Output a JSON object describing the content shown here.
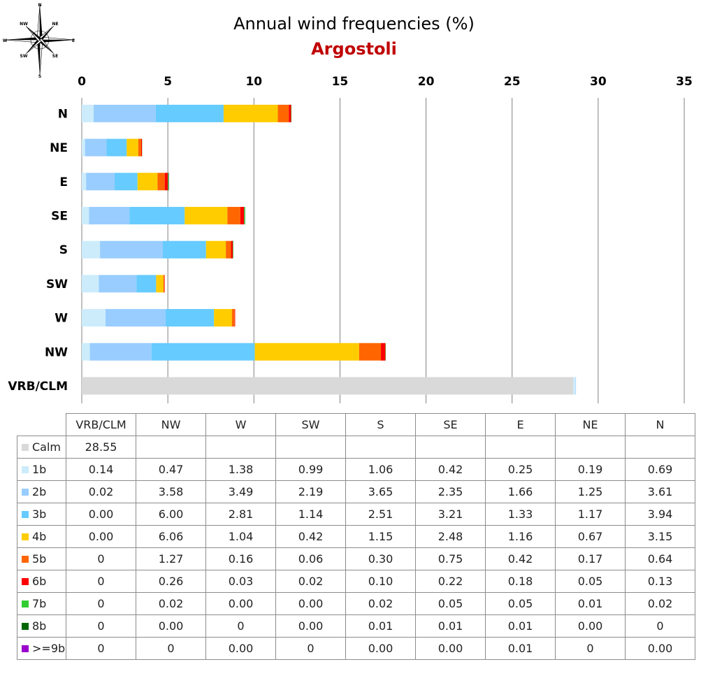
{
  "title": "Annual wind frequencies (%)",
  "subtitle": "Argostoli",
  "compass": {
    "icon": "compass-rose-icon",
    "labels": [
      "N",
      "NE",
      "E",
      "SE",
      "S",
      "SW",
      "W",
      "NW"
    ]
  },
  "colors": {
    "title": "#000000",
    "subtitle": "#c00000",
    "gridline": "#808080"
  },
  "chart_data": {
    "type": "bar",
    "orientation": "horizontal",
    "stacked": true,
    "xlim": [
      0,
      35
    ],
    "xticks": [
      "0",
      "5",
      "10",
      "15",
      "20",
      "25",
      "30",
      "35"
    ],
    "grid": true,
    "categories": [
      "N",
      "NE",
      "E",
      "SE",
      "S",
      "SW",
      "W",
      "NW",
      "VRB/CLM"
    ],
    "series": [
      {
        "name": "Calm",
        "color": "#d9d9d9",
        "values": [
          0,
          0,
          0,
          0,
          0,
          0,
          0,
          0,
          28.55
        ]
      },
      {
        "name": "1b",
        "color": "#ccecfb",
        "values": [
          0.69,
          0.19,
          0.25,
          0.42,
          1.06,
          0.99,
          1.38,
          0.47,
          0.14
        ]
      },
      {
        "name": "2b",
        "color": "#99ccff",
        "values": [
          3.61,
          1.25,
          1.66,
          2.35,
          3.65,
          2.19,
          3.49,
          3.58,
          0.02
        ]
      },
      {
        "name": "3b",
        "color": "#66ccff",
        "values": [
          3.94,
          1.17,
          1.33,
          3.21,
          2.51,
          1.14,
          2.81,
          6.0,
          0.0
        ]
      },
      {
        "name": "4b",
        "color": "#ffcc00",
        "values": [
          3.15,
          0.67,
          1.16,
          2.48,
          1.15,
          0.42,
          1.04,
          6.06,
          0.0
        ]
      },
      {
        "name": "5b",
        "color": "#ff6600",
        "values": [
          0.64,
          0.17,
          0.42,
          0.75,
          0.3,
          0.06,
          0.16,
          1.27,
          0
        ]
      },
      {
        "name": "6b",
        "color": "#ff0000",
        "values": [
          0.13,
          0.05,
          0.18,
          0.22,
          0.1,
          0.02,
          0.03,
          0.26,
          0
        ]
      },
      {
        "name": "7b",
        "color": "#33cc33",
        "values": [
          0.02,
          0.01,
          0.05,
          0.05,
          0.02,
          0.0,
          0.0,
          0.02,
          0
        ]
      },
      {
        "name": "8b",
        "color": "#006600",
        "values": [
          0,
          0.0,
          0.01,
          0.01,
          0.01,
          0.0,
          0,
          0.0,
          0
        ]
      },
      {
        "name": ">=9b",
        "color": "#9900cc",
        "values": [
          0.0,
          0,
          0.01,
          0.0,
          0.0,
          0,
          0.0,
          0,
          0
        ]
      }
    ]
  },
  "table": {
    "columns": [
      "VRB/CLM",
      "NW",
      "W",
      "SW",
      "S",
      "SE",
      "E",
      "NE",
      "N"
    ],
    "rows": [
      {
        "label": "Calm",
        "color": "#d9d9d9",
        "cells": [
          "28.55",
          "",
          "",
          "",
          "",
          "",
          "",
          "",
          ""
        ]
      },
      {
        "label": "1b",
        "color": "#ccecfb",
        "cells": [
          "0.14",
          "0.47",
          "1.38",
          "0.99",
          "1.06",
          "0.42",
          "0.25",
          "0.19",
          "0.69"
        ]
      },
      {
        "label": "2b",
        "color": "#99ccff",
        "cells": [
          "0.02",
          "3.58",
          "3.49",
          "2.19",
          "3.65",
          "2.35",
          "1.66",
          "1.25",
          "3.61"
        ]
      },
      {
        "label": "3b",
        "color": "#66ccff",
        "cells": [
          "0.00",
          "6.00",
          "2.81",
          "1.14",
          "2.51",
          "3.21",
          "1.33",
          "1.17",
          "3.94"
        ]
      },
      {
        "label": "4b",
        "color": "#ffcc00",
        "cells": [
          "0.00",
          "6.06",
          "1.04",
          "0.42",
          "1.15",
          "2.48",
          "1.16",
          "0.67",
          "3.15"
        ]
      },
      {
        "label": "5b",
        "color": "#ff6600",
        "cells": [
          "0",
          "1.27",
          "0.16",
          "0.06",
          "0.30",
          "0.75",
          "0.42",
          "0.17",
          "0.64"
        ]
      },
      {
        "label": "6b",
        "color": "#ff0000",
        "cells": [
          "0",
          "0.26",
          "0.03",
          "0.02",
          "0.10",
          "0.22",
          "0.18",
          "0.05",
          "0.13"
        ]
      },
      {
        "label": "7b",
        "color": "#33cc33",
        "cells": [
          "0",
          "0.02",
          "0.00",
          "0.00",
          "0.02",
          "0.05",
          "0.05",
          "0.01",
          "0.02"
        ]
      },
      {
        "label": "8b",
        "color": "#006600",
        "cells": [
          "0",
          "0.00",
          "0",
          "0.00",
          "0.01",
          "0.01",
          "0.01",
          "0.00",
          "0"
        ]
      },
      {
        "label": ">=9b",
        "color": "#9900cc",
        "cells": [
          "0",
          "0",
          "0.00",
          "0",
          "0.00",
          "0.00",
          "0.01",
          "0",
          "0.00"
        ]
      }
    ]
  }
}
